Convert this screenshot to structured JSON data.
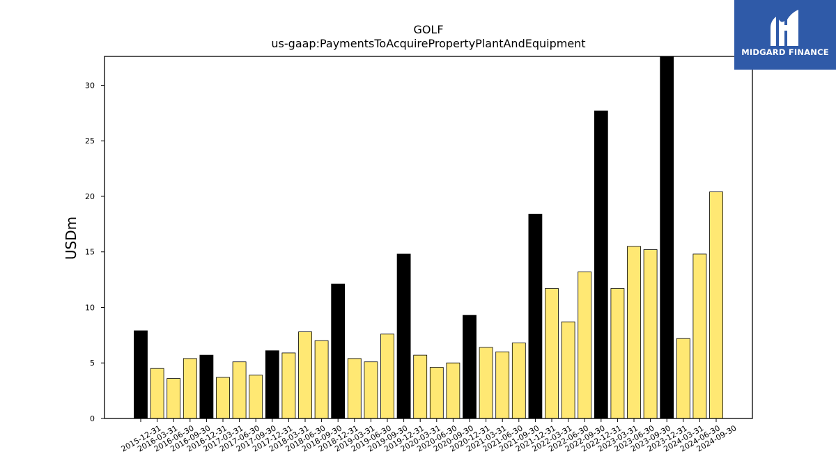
{
  "logo": {
    "text": "MIDGARD FINANCE",
    "background": "#2f5aa8"
  },
  "chart_data": {
    "type": "bar",
    "title": "GOLF",
    "subtitle": "us-gaap:PaymentsToAcquirePropertyPlantAndEquipment",
    "xlabel": "",
    "ylabel": "USDm",
    "ylim": [
      0,
      32.6
    ],
    "yticks": [
      0,
      5,
      10,
      15,
      20,
      25,
      30
    ],
    "grid": false,
    "colors": {
      "annual": "#000000",
      "quarterly": "#ffe873"
    },
    "categories": [
      "2015-12-31",
      "2016-03-31",
      "2016-06-30",
      "2016-09-30",
      "2016-12-31",
      "2017-03-31",
      "2017-06-30",
      "2017-09-30",
      "2017-12-31",
      "2018-03-31",
      "2018-06-30",
      "2018-09-30",
      "2018-12-31",
      "2019-03-31",
      "2019-06-30",
      "2019-09-30",
      "2019-12-31",
      "2020-03-31",
      "2020-06-30",
      "2020-09-30",
      "2020-12-31",
      "2021-03-31",
      "2021-06-30",
      "2021-09-30",
      "2021-12-31",
      "2022-03-31",
      "2022-06-30",
      "2022-09-30",
      "2022-12-31",
      "2023-03-31",
      "2023-06-30",
      "2023-09-30",
      "2023-12-31",
      "2024-03-31",
      "2024-06-30",
      "2024-09-30"
    ],
    "values": [
      7.9,
      4.5,
      3.6,
      5.4,
      5.7,
      3.7,
      5.1,
      3.9,
      6.1,
      5.9,
      7.8,
      7.0,
      12.1,
      5.4,
      5.1,
      7.6,
      14.8,
      5.7,
      4.6,
      5.0,
      9.3,
      6.4,
      6.0,
      6.8,
      18.4,
      11.7,
      8.7,
      13.2,
      27.7,
      11.7,
      15.5,
      15.2,
      32.6,
      7.2,
      14.8,
      20.4
    ],
    "annual_flags": [
      true,
      false,
      false,
      false,
      true,
      false,
      false,
      false,
      true,
      false,
      false,
      false,
      true,
      false,
      false,
      false,
      true,
      false,
      false,
      false,
      true,
      false,
      false,
      false,
      true,
      false,
      false,
      false,
      true,
      false,
      false,
      false,
      true,
      false,
      false,
      false
    ]
  }
}
